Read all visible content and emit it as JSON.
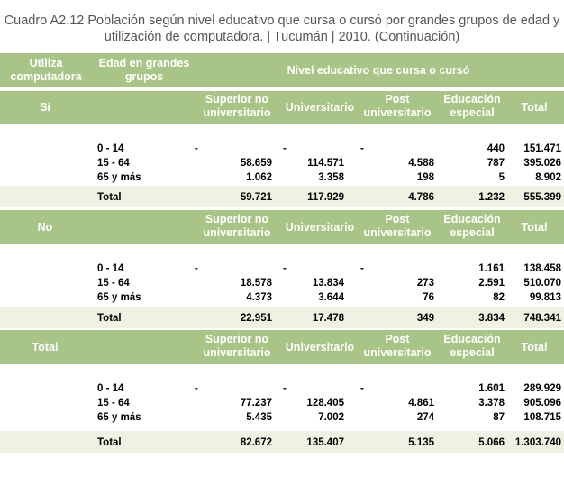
{
  "title": {
    "line1": "Cuadro A2.12 Población según nivel educativo que cursa o cursó por grandes grupos de edad y",
    "line2": "utilización de computadora. | Tucumán | 2010. (Continuación)"
  },
  "header": {
    "col_utiliza": "Utiliza computadora",
    "col_edad": "Edad en grandes grupos",
    "col_nivel": "Nivel educativo que cursa o cursó",
    "sub_superior": "Superior no universitario",
    "sub_universitario": "Universitario",
    "sub_post": "Post universitario",
    "sub_educacion": "Educación especial",
    "sub_total": "Total"
  },
  "sections": [
    {
      "label": "Sí",
      "rows": [
        {
          "edad": "0 - 14",
          "c1": "-",
          "superior": "",
          "universitario": "-",
          "post": "-",
          "especial": "440",
          "total": "151.471"
        },
        {
          "edad": "15 - 64",
          "c1": "",
          "superior": "58.659",
          "universitario": "114.571",
          "post": "4.588",
          "especial": "787",
          "total": "395.026"
        },
        {
          "edad": "65 y más",
          "c1": "",
          "superior": "1.062",
          "universitario": "3.358",
          "post": "198",
          "especial": "5",
          "total": "8.902"
        }
      ],
      "total": {
        "label": "Total",
        "superior": "59.721",
        "universitario": "117.929",
        "post": "4.786",
        "especial": "1.232",
        "total": "555.399"
      }
    },
    {
      "label": "No",
      "rows": [
        {
          "edad": "0 - 14",
          "c1": "-",
          "superior": "",
          "universitario": "-",
          "post": "-",
          "especial": "1.161",
          "total": "138.458"
        },
        {
          "edad": "15 - 64",
          "c1": "",
          "superior": "18.578",
          "universitario": "13.834",
          "post": "273",
          "especial": "2.591",
          "total": "510.070"
        },
        {
          "edad": "65 y más",
          "c1": "",
          "superior": "4.373",
          "universitario": "3.644",
          "post": "76",
          "especial": "82",
          "total": "99.813"
        }
      ],
      "total": {
        "label": "Total",
        "superior": "22.951",
        "universitario": "17.478",
        "post": "349",
        "especial": "3.834",
        "total": "748.341"
      }
    },
    {
      "label": "Total",
      "rows": [
        {
          "edad": "0 - 14",
          "c1": "-",
          "superior": "",
          "universitario": "-",
          "post": "-",
          "especial": "1.601",
          "total": "289.929"
        },
        {
          "edad": "15 - 64",
          "c1": "",
          "superior": "77.237",
          "universitario": "128.405",
          "post": "4.861",
          "especial": "3.378",
          "total": "905.096"
        },
        {
          "edad": "65 y más",
          "c1": "",
          "superior": "5.435",
          "universitario": "7.002",
          "post": "274",
          "especial": "87",
          "total": "108.715"
        }
      ],
      "total": {
        "label": "Total",
        "superior": "82.672",
        "universitario": "135.407",
        "post": "5.135",
        "especial": "5.066",
        "total": "1.303.740"
      }
    }
  ]
}
